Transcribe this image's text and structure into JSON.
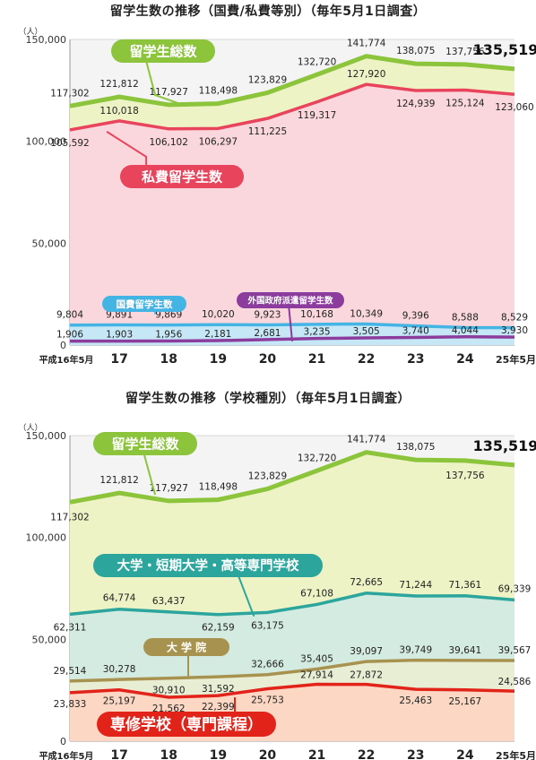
{
  "charts": {
    "c1_title": "留学生数の推移（国費/私費等別）（毎年5月1日調査）",
    "c2_title": "留学生数の推移（学校種別）（毎年5月1日調査）"
  },
  "colors": {
    "total": "#8cc43c",
    "total_fill": "#eef3c6",
    "private": "#e8445c",
    "private_fill": "#fad7dc",
    "gov": "#44b4e4",
    "gov_fill": "#c6e8f6",
    "foreign_gov": "#8c3c9c",
    "univ": "#2ca69c",
    "univ_fill": "#d4ebe1",
    "grad": "#a89250",
    "grad_fill": "#e8eed4",
    "senshu": "#e2231a",
    "senshu_fill": "#fbd7c4",
    "bg_panel": "#f4f4f4"
  },
  "chart_data": [
    {
      "type": "area",
      "title": "留学生数の推移（国費/私費等別）（毎年5月1日調査）",
      "x": [
        "平成16年5月",
        "17",
        "18",
        "19",
        "20",
        "21",
        "22",
        "23",
        "24",
        "25年5月"
      ],
      "ylim": [
        0,
        150000
      ],
      "yticks": [
        "0",
        "50,000",
        "100,000",
        "150,000"
      ],
      "yunit": "（人）",
      "series": [
        {
          "name": "留学生総数",
          "values": [
            117302,
            121812,
            117927,
            118498,
            123829,
            132720,
            141774,
            138075,
            137756,
            135519
          ],
          "labels": [
            "117,302",
            "121,812",
            "117,927",
            "118,498",
            "123,829",
            "132,720",
            "141,774",
            "138,075",
            "137,756",
            "135,519"
          ]
        },
        {
          "name": "私費留学生数",
          "values": [
            105592,
            110018,
            106102,
            106297,
            111225,
            119317,
            127920,
            124939,
            125124,
            123060
          ],
          "labels": [
            "105,592",
            "110,018",
            "106,102",
            "106,297",
            "111,225",
            "119,317",
            "127,920",
            "124,939",
            "125,124",
            "123,060"
          ]
        },
        {
          "name": "国費留学生数",
          "values": [
            9804,
            9891,
            9869,
            10020,
            9923,
            10168,
            10349,
            9396,
            8588,
            8529
          ],
          "labels": [
            "9,804",
            "9,891",
            "9,869",
            "10,020",
            "9,923",
            "10,168",
            "10,349",
            "9,396",
            "8,588",
            "8,529"
          ]
        },
        {
          "name": "外国政府派遣留学生数",
          "values": [
            1906,
            1903,
            1956,
            2181,
            2681,
            3235,
            3505,
            3740,
            4044,
            3930
          ],
          "labels": [
            "1,906",
            "1,903",
            "1,956",
            "2,181",
            "2,681",
            "3,235",
            "3,505",
            "3,740",
            "4,044",
            "3,930"
          ]
        }
      ]
    },
    {
      "type": "area",
      "title": "留学生数の推移（学校種別）（毎年5月1日調査）",
      "x": [
        "平成16年5月",
        "17",
        "18",
        "19",
        "20",
        "21",
        "22",
        "23",
        "24",
        "25年5月"
      ],
      "ylim": [
        0,
        150000
      ],
      "yticks": [
        "0",
        "50,000",
        "100,000",
        "150,000"
      ],
      "yunit": "（人）",
      "series": [
        {
          "name": "留学生総数",
          "values": [
            117302,
            121812,
            117927,
            118498,
            123829,
            132720,
            141774,
            138075,
            137756,
            135519
          ],
          "labels": [
            "117,302",
            "121,812",
            "117,927",
            "118,498",
            "123,829",
            "132,720",
            "141,774",
            "138,075",
            "137,756",
            "135,519"
          ]
        },
        {
          "name": "大学・短期大学・高等専門学校",
          "values": [
            62311,
            64774,
            63437,
            62159,
            63175,
            67108,
            72665,
            71244,
            71361,
            69339
          ],
          "labels": [
            "62,311",
            "64,774",
            "63,437",
            "62,159",
            "63,175",
            "67,108",
            "72,665",
            "71,244",
            "71,361",
            "69,339"
          ]
        },
        {
          "name": "大学院",
          "values": [
            29514,
            30278,
            30910,
            31592,
            32666,
            35405,
            39097,
            39749,
            39641,
            39567
          ],
          "labels": [
            "29,514",
            "30,278",
            "30,910",
            "31,592",
            "32,666",
            "35,405",
            "39,097",
            "39,749",
            "39,641",
            "39,567"
          ]
        },
        {
          "name": "専修学校（専門課程）",
          "values": [
            23833,
            25197,
            21562,
            22399,
            25753,
            27914,
            27872,
            25463,
            25167,
            24586
          ],
          "labels": [
            "23,833",
            "25,197",
            "21,562",
            "22,399",
            "25,753",
            "27,914",
            "27,872",
            "25,463",
            "25,167",
            "24,586"
          ]
        }
      ]
    }
  ],
  "callouts": {
    "total_label": "留学生総数",
    "private_label": "私費留学生数",
    "gov_label": "国費留学生数",
    "foreign_label": "外国政府派遣留学生数",
    "univ_label": "大学・短期大学・高等専門学校",
    "grad_label": "大 学 院",
    "senshu_label": "専修学校（専門課程）"
  }
}
